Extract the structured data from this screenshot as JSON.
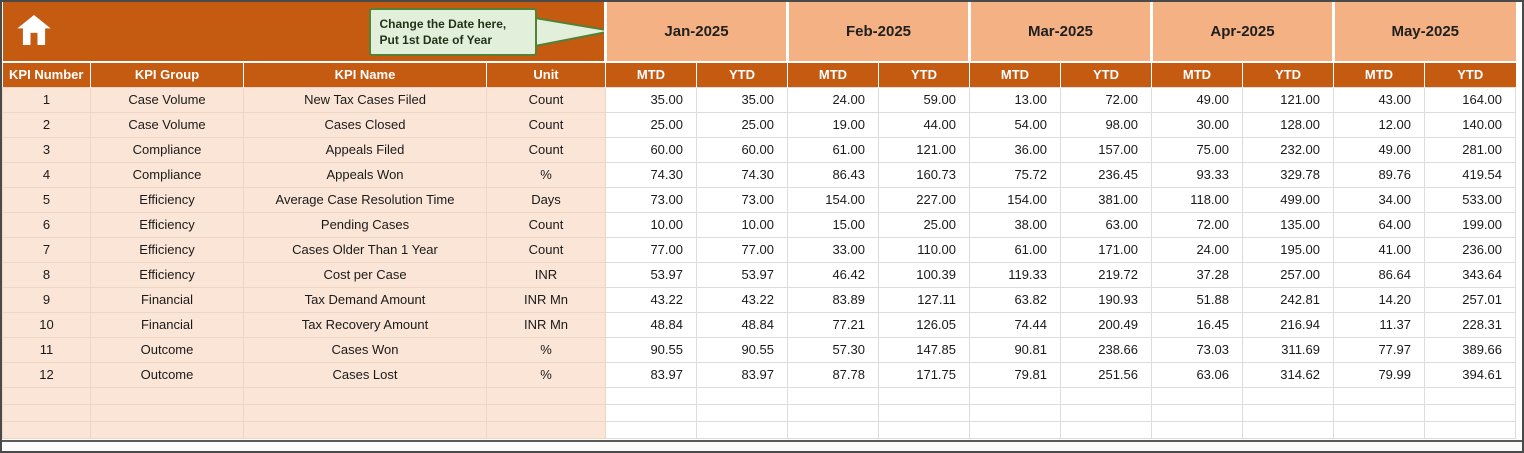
{
  "colors": {
    "header_dark": "#C55A11",
    "month_header_bg": "#F4B183",
    "left_columns_bg": "#FBE5D6",
    "callout_bg": "#E2EFDA",
    "callout_border": "#538135"
  },
  "icons": {
    "home": "home-icon"
  },
  "callout": {
    "line1": "Change the Date here,",
    "line2": "Put 1st Date of Year"
  },
  "months": [
    "Jan-2025",
    "Feb-2025",
    "Mar-2025",
    "Apr-2025",
    "May-2025"
  ],
  "subheaders": {
    "mtd": "MTD",
    "ytd": "YTD"
  },
  "columns": [
    "KPI Number",
    "KPI Group",
    "KPI Name",
    "Unit"
  ],
  "rows": [
    {
      "num": "1",
      "group": "Case Volume",
      "name": "New Tax Cases Filed",
      "unit": "Count",
      "values": [
        "35.00",
        "35.00",
        "24.00",
        "59.00",
        "13.00",
        "72.00",
        "49.00",
        "121.00",
        "43.00",
        "164.00"
      ]
    },
    {
      "num": "2",
      "group": "Case Volume",
      "name": "Cases Closed",
      "unit": "Count",
      "values": [
        "25.00",
        "25.00",
        "19.00",
        "44.00",
        "54.00",
        "98.00",
        "30.00",
        "128.00",
        "12.00",
        "140.00"
      ]
    },
    {
      "num": "3",
      "group": "Compliance",
      "name": "Appeals Filed",
      "unit": "Count",
      "values": [
        "60.00",
        "60.00",
        "61.00",
        "121.00",
        "36.00",
        "157.00",
        "75.00",
        "232.00",
        "49.00",
        "281.00"
      ]
    },
    {
      "num": "4",
      "group": "Compliance",
      "name": "Appeals Won",
      "unit": "%",
      "values": [
        "74.30",
        "74.30",
        "86.43",
        "160.73",
        "75.72",
        "236.45",
        "93.33",
        "329.78",
        "89.76",
        "419.54"
      ]
    },
    {
      "num": "5",
      "group": "Efficiency",
      "name": "Average Case Resolution Time",
      "unit": "Days",
      "values": [
        "73.00",
        "73.00",
        "154.00",
        "227.00",
        "154.00",
        "381.00",
        "118.00",
        "499.00",
        "34.00",
        "533.00"
      ]
    },
    {
      "num": "6",
      "group": "Efficiency",
      "name": "Pending Cases",
      "unit": "Count",
      "values": [
        "10.00",
        "10.00",
        "15.00",
        "25.00",
        "38.00",
        "63.00",
        "72.00",
        "135.00",
        "64.00",
        "199.00"
      ]
    },
    {
      "num": "7",
      "group": "Efficiency",
      "name": "Cases Older Than 1 Year",
      "unit": "Count",
      "values": [
        "77.00",
        "77.00",
        "33.00",
        "110.00",
        "61.00",
        "171.00",
        "24.00",
        "195.00",
        "41.00",
        "236.00"
      ]
    },
    {
      "num": "8",
      "group": "Efficiency",
      "name": "Cost per Case",
      "unit": "INR",
      "values": [
        "53.97",
        "53.97",
        "46.42",
        "100.39",
        "119.33",
        "219.72",
        "37.28",
        "257.00",
        "86.64",
        "343.64"
      ]
    },
    {
      "num": "9",
      "group": "Financial",
      "name": "Tax Demand Amount",
      "unit": "INR Mn",
      "values": [
        "43.22",
        "43.22",
        "83.89",
        "127.11",
        "63.82",
        "190.93",
        "51.88",
        "242.81",
        "14.20",
        "257.01"
      ]
    },
    {
      "num": "10",
      "group": "Financial",
      "name": "Tax Recovery Amount",
      "unit": "INR Mn",
      "values": [
        "48.84",
        "48.84",
        "77.21",
        "126.05",
        "74.44",
        "200.49",
        "16.45",
        "216.94",
        "11.37",
        "228.31"
      ]
    },
    {
      "num": "11",
      "group": "Outcome",
      "name": "Cases Won",
      "unit": "%",
      "values": [
        "90.55",
        "90.55",
        "57.30",
        "147.85",
        "90.81",
        "238.66",
        "73.03",
        "311.69",
        "77.97",
        "389.66"
      ]
    },
    {
      "num": "12",
      "group": "Outcome",
      "name": "Cases Lost",
      "unit": "%",
      "values": [
        "83.97",
        "83.97",
        "87.78",
        "171.75",
        "79.81",
        "251.56",
        "63.06",
        "314.62",
        "79.99",
        "394.61"
      ]
    }
  ],
  "empty_row_count": 3
}
